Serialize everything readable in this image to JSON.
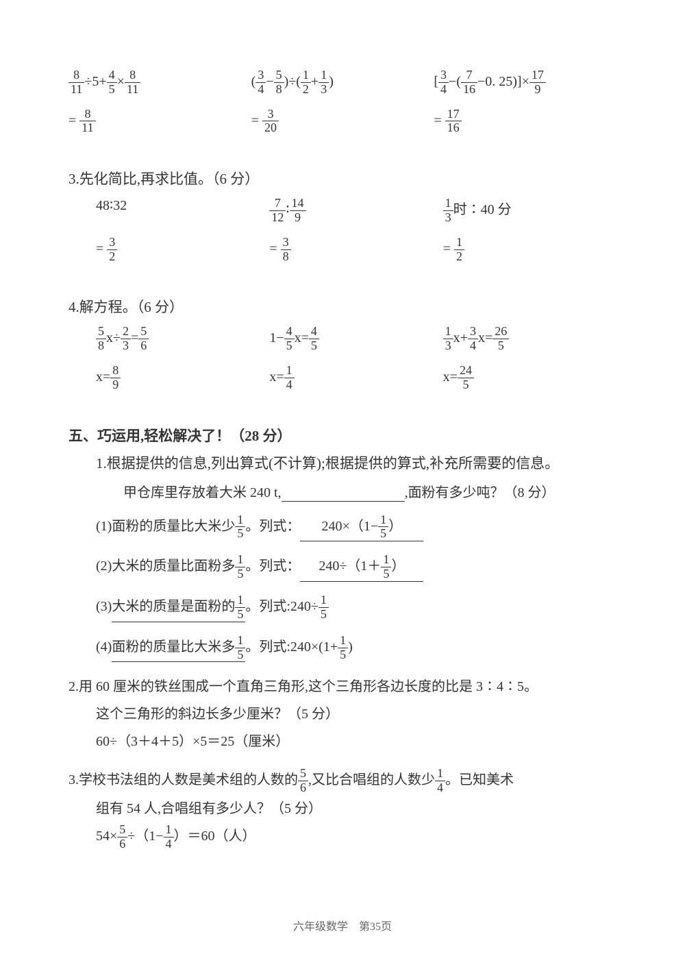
{
  "page": {
    "footer": "六年级数学　第35页",
    "text_color": "#333333",
    "background_color": "#ffffff"
  },
  "calc_row": {
    "problems": [
      {
        "expr_prefix": "",
        "f1n": "8",
        "f1d": "11",
        "op1": "÷5+",
        "f2n": "4",
        "f2d": "5",
        "op2": "×",
        "f3n": "8",
        "f3d": "11",
        "ans_n": "8",
        "ans_d": "11"
      },
      {
        "lp": "(",
        "f1n": "3",
        "f1d": "4",
        "op1": "−",
        "f2n": "5",
        "f2d": "8",
        "rp": ")÷(",
        "f3n": "1",
        "f3d": "2",
        "op2": "+",
        "f4n": "1",
        "f4d": "3",
        "rp2": ")",
        "ans_n": "3",
        "ans_d": "20"
      },
      {
        "lp": "[",
        "f1n": "3",
        "f1d": "4",
        "op1": "−(",
        "f2n": "7",
        "f2d": "16",
        "op2": "−0. 25)",
        "rp": "]×",
        "f3n": "17",
        "f3d": "9",
        "ans_n": "17",
        "ans_d": "16"
      }
    ]
  },
  "q3": {
    "title": "3.先化简比,再求比值。（6 分）",
    "items": [
      {
        "expr": "48∶32",
        "ans_n": "3",
        "ans_d": "2"
      },
      {
        "f1n": "7",
        "f1d": "12",
        "colon": "∶",
        "f2n": "14",
        "f2d": "9",
        "ans_n": "3",
        "ans_d": "8"
      },
      {
        "f1n": "1",
        "f1d": "3",
        "suffix": "时∶40 分",
        "ans_n": "1",
        "ans_d": "2"
      }
    ]
  },
  "q4": {
    "title": "4.解方程。（6 分）",
    "items": [
      {
        "f1n": "5",
        "f1d": "8",
        "mid": "x÷",
        "f2n": "2",
        "f2d": "3",
        "eq": "=",
        "f3n": "5",
        "f3d": "6",
        "ans_prefix": "x=",
        "ans_n": "8",
        "ans_d": "9"
      },
      {
        "prefix": "1−",
        "f1n": "4",
        "f1d": "5",
        "mid": "x=",
        "f2n": "4",
        "f2d": "5",
        "ans_prefix": "x=",
        "ans_n": "1",
        "ans_d": "4"
      },
      {
        "f1n": "1",
        "f1d": "3",
        "mid": "x+",
        "f2n": "3",
        "f2d": "4",
        "mid2": "x=",
        "f3n": "26",
        "f3d": "5",
        "ans_prefix": "x=",
        "ans_n": "24",
        "ans_d": "5"
      }
    ]
  },
  "sec5": {
    "header": "五、巧运用,轻松解决了！（28 分）",
    "q1": {
      "title": "1.根据提供的信息,列出算式(不计算);根据提供的算式,补充所需要的信息。",
      "stem_a": "甲仓库里存放着大米 240 t,",
      "blank": "　　　　　　　",
      "stem_b": ",面粉有多少吨？（8 分）",
      "items": [
        {
          "label": "(1)面粉的质量比大米少",
          "fn": "1",
          "fd": "5",
          "tail": "。列式：",
          "ans_pre": "240×（1−",
          "ans_fn": "1",
          "ans_fd": "5",
          "ans_post": "）"
        },
        {
          "label": "(2)大米的质量比面粉多",
          "fn": "1",
          "fd": "5",
          "tail": "。列式：",
          "ans_pre": "240÷（1＋",
          "ans_fn": "1",
          "ans_fd": "5",
          "ans_post": "）"
        },
        {
          "label": "(3)",
          "fill": "大米的质量是面粉的",
          "fn": "1",
          "fd": "5",
          "mid": "。列式:240÷",
          "ans_fn": "1",
          "ans_fd": "5"
        },
        {
          "label": "(4)",
          "fill": "面粉的质量比大米多",
          "fn": "1",
          "fd": "5",
          "mid": "。列式:240×(1+",
          "ans_fn": "1",
          "ans_fd": "5",
          "ans_post": ")"
        }
      ]
    },
    "q2": {
      "line1": "2.用 60 厘米的铁丝围成一个直角三角形,这个三角形各边长度的比是 3∶4∶5。",
      "line2": "这个三角形的斜边长多少厘米？（5 分）",
      "answer": "60÷（3＋4＋5）×5＝25（厘米）"
    },
    "q3": {
      "line1a": "3.学校书法组的人数是美术组的人数的",
      "f1n": "5",
      "f1d": "6",
      "line1b": ",又比合唱组的人数少",
      "f2n": "1",
      "f2d": "4",
      "line1c": "。已知美术",
      "line2": "组有 54 人,合唱组有多少人？（5 分）",
      "ans_pre": "54×",
      "af1n": "5",
      "af1d": "6",
      "ans_mid": "÷（1−",
      "af2n": "1",
      "af2d": "4",
      "ans_post": "）＝60（人）"
    }
  }
}
